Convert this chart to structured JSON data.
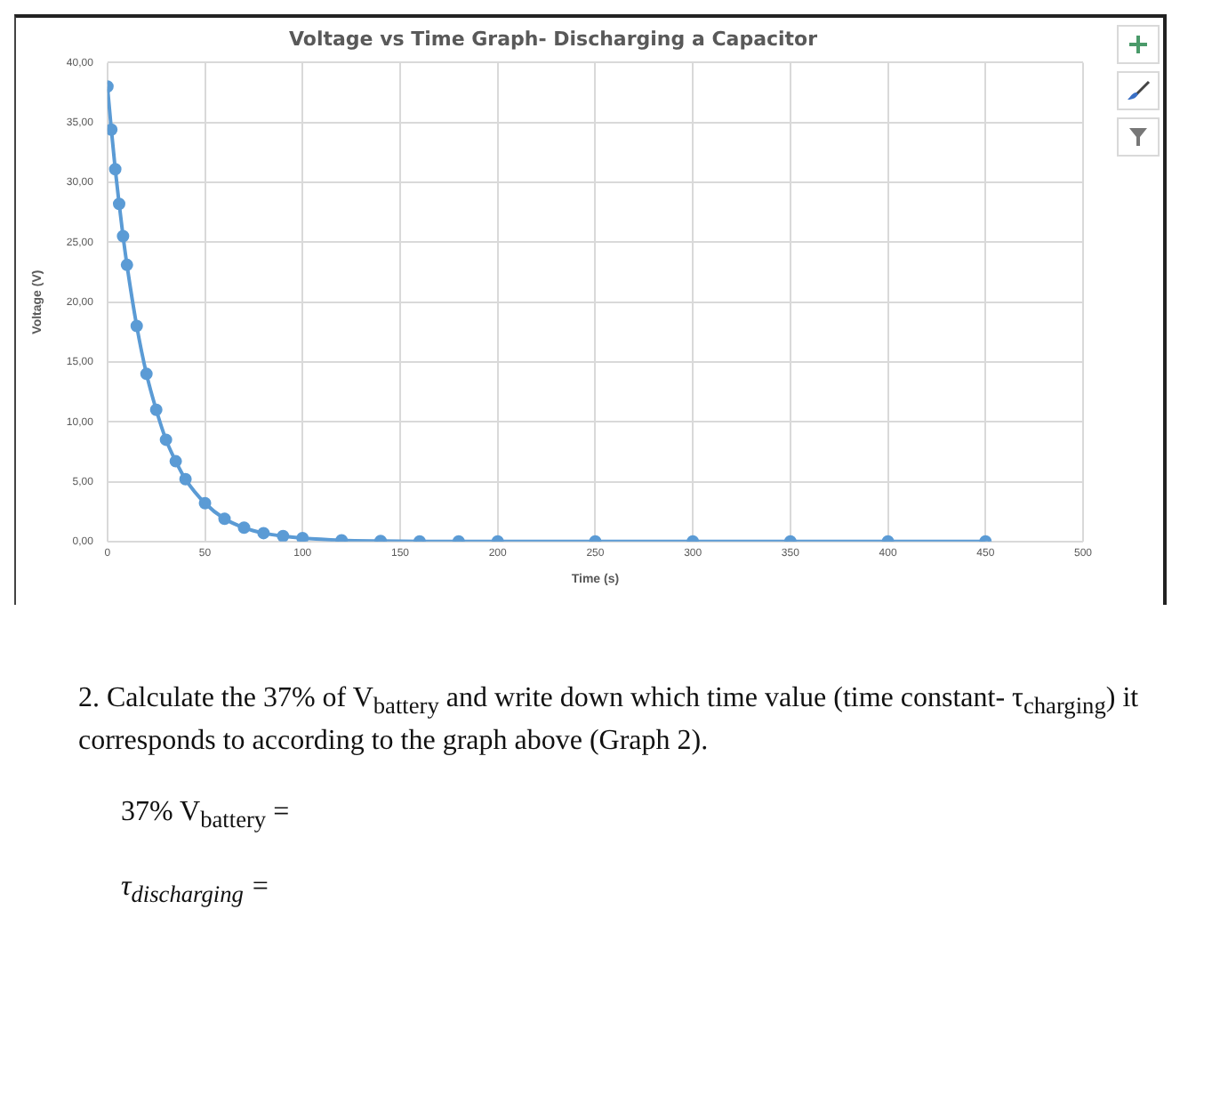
{
  "chart_data": {
    "type": "line",
    "title": "Voltage vs Time Graph- Discharging a Capacitor",
    "xlabel": "Time (s)",
    "ylabel": "Voltage (V)",
    "series": [
      {
        "color": "#5b9bd5",
        "x": [
          0,
          2,
          4,
          6,
          8,
          10,
          15,
          20,
          25,
          30,
          35,
          40,
          50,
          60,
          70,
          80,
          90,
          100,
          120,
          140,
          160,
          180,
          200,
          250,
          300,
          350,
          400,
          450
        ],
        "values": [
          38,
          34.4,
          31.1,
          28.2,
          25.5,
          23.1,
          18,
          14,
          11,
          8.5,
          6.7,
          5.2,
          3.2,
          1.9,
          1.15,
          0.7,
          0.45,
          0.28,
          0.1,
          0.04,
          0.01,
          0,
          0,
          0,
          0,
          0,
          0,
          0
        ]
      }
    ],
    "xlim": [
      0,
      500
    ],
    "xticks": [
      0,
      50,
      100,
      150,
      200,
      250,
      300,
      350,
      400,
      450,
      500
    ],
    "ylim": [
      0,
      40
    ],
    "yticks": [
      {
        "value": 0,
        "label": "0,00"
      },
      {
        "value": 5,
        "label": "5,00"
      },
      {
        "value": 10,
        "label": "10,00"
      },
      {
        "value": 15,
        "label": "15,00"
      },
      {
        "value": 20,
        "label": "20,00"
      },
      {
        "value": 25,
        "label": "25,00"
      },
      {
        "value": 30,
        "label": "30,00"
      },
      {
        "value": 35,
        "label": "35,00"
      },
      {
        "value": 40,
        "label": "40,00"
      }
    ],
    "grid": true,
    "marker": "circle",
    "line_style": "solid",
    "legend": false,
    "annotations": [
      "2. Calculate the 37% of V$_{battery}$ and write down which time value (time constant- τ$_{charging}$) it corresponds to according to the graph above (Graph 2).",
      "37% V$_{battery}$ =",
      "τ$_{discharging}$ ="
    ]
  }
}
